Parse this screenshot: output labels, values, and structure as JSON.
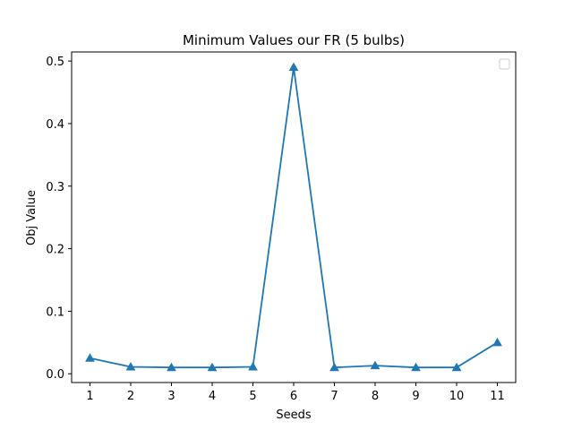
{
  "chart_data": {
    "type": "line",
    "title": "Minimum Values our FR (5 bulbs)",
    "xlabel": "Seeds",
    "ylabel": "Obj Value",
    "x": [
      1,
      2,
      3,
      4,
      5,
      6,
      7,
      8,
      9,
      10,
      11
    ],
    "series": [
      {
        "name": "",
        "values": [
          0.025,
          0.011,
          0.01,
          0.01,
          0.011,
          0.49,
          0.01,
          0.013,
          0.01,
          0.01,
          0.05
        ],
        "color": "#1f77b4",
        "marker": "triangle-up"
      }
    ],
    "xlim": [
      0.55,
      11.45
    ],
    "ylim": [
      -0.014,
      0.5145
    ],
    "xticks": [
      1,
      2,
      3,
      4,
      5,
      6,
      7,
      8,
      9,
      10,
      11
    ],
    "yticks": [
      0.0,
      0.1,
      0.2,
      0.3,
      0.4,
      0.5
    ],
    "ytick_labels": [
      "0.0",
      "0.1",
      "0.2",
      "0.3",
      "0.4",
      "0.5"
    ],
    "legend": "top-right, empty",
    "grid": false
  }
}
